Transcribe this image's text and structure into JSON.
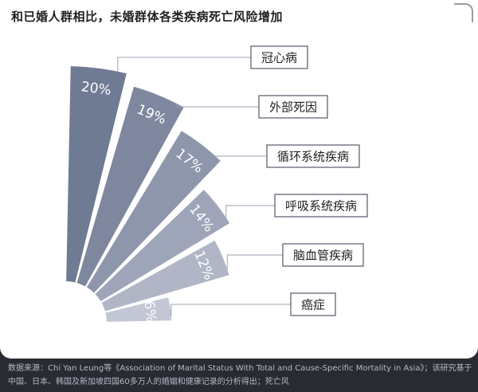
{
  "title": "和已婚人群相比，未婚群体各类疾病死亡风险增加",
  "footer_text": "数据来源：Chi Yan Leung等《Association of Marital Status With Total and Cause-Specific Mortality in Asia》；该研究基于中国、日本、韩国及新加坡四国60多万人的婚姻和健康记录的分析得出；死亡风",
  "chart_data": {
    "type": "bar",
    "subtype": "radial-fan",
    "categories": [
      "冠心病",
      "外部死因",
      "循环系统疾病",
      "呼吸系统疾病",
      "脑血管疾病",
      "癌症"
    ],
    "values": [
      20,
      19,
      17,
      14,
      12,
      6
    ],
    "data_labels": [
      "20%",
      "19%",
      "17%",
      "14%",
      "12%",
      "6%"
    ],
    "colors": [
      "#6f7a93",
      "#7e879e",
      "#8e96ab",
      "#9ea5b8",
      "#b0b6c5",
      "#c2c7d3"
    ],
    "legend": "callout labels to the right of each segment"
  }
}
